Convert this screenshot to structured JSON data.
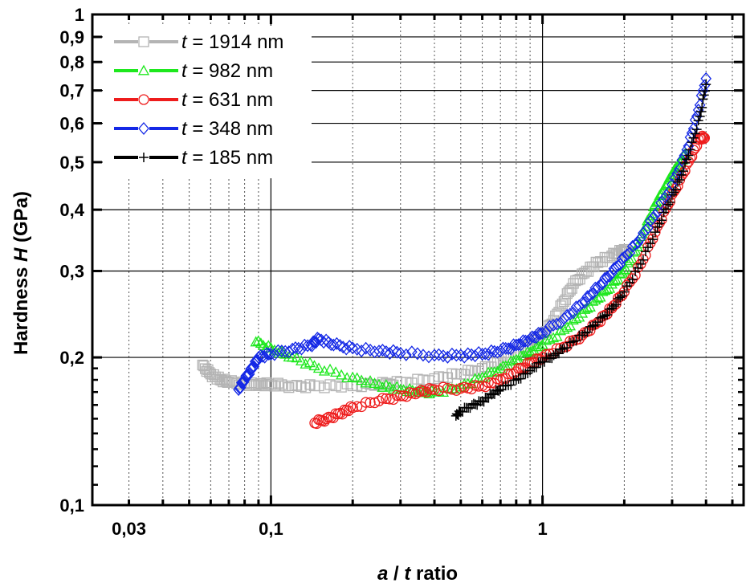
{
  "chart_data": {
    "type": "scatter",
    "xscale": "log",
    "yscale": "log",
    "xlim": [
      0.022,
      5.5
    ],
    "ylim": [
      0.1,
      1.0
    ],
    "grid": true,
    "legend_position": "top-left",
    "xlabel": {
      "var1": "a",
      "sep": " / ",
      "var2": "t",
      "rest": " ratio"
    },
    "ylabel": {
      "pre": "Hardness ",
      "var": "H",
      "post": " (GPa)"
    },
    "x_ticks": [
      {
        "v": 0.03,
        "label": "0,03"
      },
      {
        "v": 0.1,
        "label": "0,1"
      },
      {
        "v": 1,
        "label": "1"
      }
    ],
    "y_ticks": [
      {
        "v": 0.1,
        "label": "0,1"
      },
      {
        "v": 0.2,
        "label": "0,2"
      },
      {
        "v": 0.3,
        "label": "0,3"
      },
      {
        "v": 0.4,
        "label": "0,4"
      },
      {
        "v": 0.5,
        "label": "0,5"
      },
      {
        "v": 0.6,
        "label": "0,6"
      },
      {
        "v": 0.7,
        "label": "0,7"
      },
      {
        "v": 0.8,
        "label": "0,8"
      },
      {
        "v": 0.9,
        "label": "0,9"
      },
      {
        "v": 1.0,
        "label": "1"
      }
    ],
    "series": [
      {
        "name": "t = 1914 nm",
        "var": "t",
        "label": "= 1914 nm",
        "color": "#b4b4b4",
        "marker": "square",
        "points": [
          [
            0.056,
            0.193
          ],
          [
            0.06,
            0.185
          ],
          [
            0.065,
            0.18
          ],
          [
            0.07,
            0.178
          ],
          [
            0.08,
            0.177
          ],
          [
            0.09,
            0.176
          ],
          [
            0.1,
            0.176
          ],
          [
            0.12,
            0.175
          ],
          [
            0.15,
            0.175
          ],
          [
            0.2,
            0.175
          ],
          [
            0.25,
            0.176
          ],
          [
            0.3,
            0.178
          ],
          [
            0.4,
            0.181
          ],
          [
            0.5,
            0.185
          ],
          [
            0.6,
            0.19
          ],
          [
            0.7,
            0.196
          ],
          [
            0.8,
            0.204
          ],
          [
            0.9,
            0.213
          ],
          [
            1.0,
            0.223
          ],
          [
            1.1,
            0.238
          ],
          [
            1.2,
            0.26
          ],
          [
            1.3,
            0.283
          ],
          [
            1.45,
            0.3
          ],
          [
            1.6,
            0.312
          ],
          [
            1.8,
            0.322
          ],
          [
            1.95,
            0.33
          ],
          [
            2.05,
            0.33
          ]
        ]
      },
      {
        "name": "t = 982 nm",
        "var": "t",
        "label": "= 982 nm",
        "color": "#1ee81e",
        "marker": "triangle",
        "points": [
          [
            0.088,
            0.215
          ],
          [
            0.1,
            0.209
          ],
          [
            0.12,
            0.2
          ],
          [
            0.15,
            0.19
          ],
          [
            0.2,
            0.182
          ],
          [
            0.25,
            0.176
          ],
          [
            0.3,
            0.172
          ],
          [
            0.35,
            0.17
          ],
          [
            0.4,
            0.17
          ],
          [
            0.5,
            0.174
          ],
          [
            0.6,
            0.182
          ],
          [
            0.7,
            0.19
          ],
          [
            0.8,
            0.198
          ],
          [
            0.9,
            0.205
          ],
          [
            1.0,
            0.212
          ],
          [
            1.2,
            0.228
          ],
          [
            1.4,
            0.246
          ],
          [
            1.6,
            0.264
          ],
          [
            1.8,
            0.282
          ],
          [
            2.0,
            0.3
          ],
          [
            2.2,
            0.33
          ],
          [
            2.4,
            0.37
          ],
          [
            2.6,
            0.41
          ],
          [
            2.8,
            0.44
          ],
          [
            3.0,
            0.47
          ],
          [
            3.2,
            0.5
          ],
          [
            3.35,
            0.52
          ]
        ]
      },
      {
        "name": "t = 631 nm",
        "var": "t",
        "label": "= 631 nm",
        "color": "#ee1c1c",
        "marker": "circle",
        "points": [
          [
            0.145,
            0.147
          ],
          [
            0.16,
            0.15
          ],
          [
            0.18,
            0.154
          ],
          [
            0.2,
            0.158
          ],
          [
            0.25,
            0.163
          ],
          [
            0.3,
            0.167
          ],
          [
            0.35,
            0.17
          ],
          [
            0.4,
            0.172
          ],
          [
            0.5,
            0.173
          ],
          [
            0.6,
            0.175
          ],
          [
            0.7,
            0.18
          ],
          [
            0.8,
            0.187
          ],
          [
            0.9,
            0.195
          ],
          [
            1.0,
            0.2
          ],
          [
            1.2,
            0.21
          ],
          [
            1.4,
            0.222
          ],
          [
            1.6,
            0.236
          ],
          [
            1.8,
            0.252
          ],
          [
            2.0,
            0.272
          ],
          [
            2.3,
            0.31
          ],
          [
            2.6,
            0.36
          ],
          [
            2.9,
            0.41
          ],
          [
            3.2,
            0.46
          ],
          [
            3.5,
            0.51
          ],
          [
            3.8,
            0.56
          ],
          [
            3.95,
            0.56
          ]
        ]
      },
      {
        "name": "t = 348 nm",
        "var": "t",
        "label": "= 348 nm",
        "color": "#1428e6",
        "marker": "diamond",
        "points": [
          [
            0.076,
            0.172
          ],
          [
            0.08,
            0.18
          ],
          [
            0.085,
            0.19
          ],
          [
            0.09,
            0.2
          ],
          [
            0.1,
            0.203
          ],
          [
            0.12,
            0.208
          ],
          [
            0.14,
            0.212
          ],
          [
            0.15,
            0.218
          ],
          [
            0.17,
            0.212
          ],
          [
            0.2,
            0.209
          ],
          [
            0.25,
            0.206
          ],
          [
            0.3,
            0.204
          ],
          [
            0.4,
            0.202
          ],
          [
            0.5,
            0.202
          ],
          [
            0.6,
            0.203
          ],
          [
            0.7,
            0.206
          ],
          [
            0.8,
            0.212
          ],
          [
            0.9,
            0.218
          ],
          [
            1.0,
            0.224
          ],
          [
            1.2,
            0.24
          ],
          [
            1.4,
            0.258
          ],
          [
            1.6,
            0.278
          ],
          [
            1.8,
            0.297
          ],
          [
            2.0,
            0.32
          ],
          [
            2.3,
            0.35
          ],
          [
            2.6,
            0.39
          ],
          [
            3.0,
            0.45
          ],
          [
            3.4,
            0.53
          ],
          [
            3.7,
            0.62
          ],
          [
            4.0,
            0.74
          ]
        ]
      },
      {
        "name": "t = 185 nm",
        "var": "t",
        "label": "= 185 nm",
        "color": "#000000",
        "marker": "plus",
        "points": [
          [
            0.48,
            0.152
          ],
          [
            0.5,
            0.155
          ],
          [
            0.55,
            0.16
          ],
          [
            0.6,
            0.163
          ],
          [
            0.65,
            0.168
          ],
          [
            0.7,
            0.172
          ],
          [
            0.8,
            0.18
          ],
          [
            0.9,
            0.188
          ],
          [
            1.0,
            0.196
          ],
          [
            1.1,
            0.202
          ],
          [
            1.2,
            0.209
          ],
          [
            1.4,
            0.222
          ],
          [
            1.6,
            0.236
          ],
          [
            1.8,
            0.252
          ],
          [
            2.0,
            0.272
          ],
          [
            2.3,
            0.31
          ],
          [
            2.6,
            0.36
          ],
          [
            2.9,
            0.41
          ],
          [
            3.2,
            0.46
          ],
          [
            3.5,
            0.53
          ],
          [
            3.8,
            0.62
          ],
          [
            4.0,
            0.72
          ]
        ]
      }
    ]
  }
}
